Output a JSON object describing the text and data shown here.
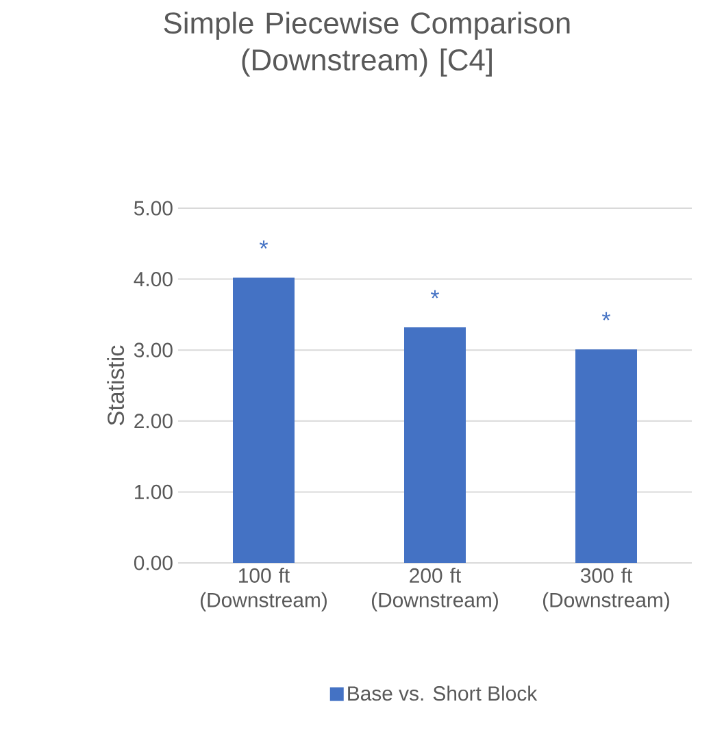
{
  "chart_data": {
    "type": "bar",
    "title": "Simple Piecewise Comparison (Downstream) [C4]",
    "ylabel": "Statistic",
    "categories": [
      "100 ft (Downstream)",
      "200 ft (Downstream)",
      "300 ft (Downstream)"
    ],
    "series": [
      {
        "name": "Base vs. Short Block",
        "color": "#4472c4",
        "values": [
          4.02,
          3.32,
          3.01
        ]
      }
    ],
    "ylim": [
      0,
      5
    ],
    "yticks": [
      {
        "value": 0,
        "label": "0.00"
      },
      {
        "value": 1,
        "label": "1.00"
      },
      {
        "value": 2,
        "label": "2.00"
      },
      {
        "value": 3,
        "label": "3.00"
      },
      {
        "value": 4,
        "label": "4.00"
      },
      {
        "value": 5,
        "label": "5.00"
      }
    ],
    "annotations": [
      "*",
      "*",
      "*"
    ],
    "grid": "y",
    "legend": "bottom"
  }
}
